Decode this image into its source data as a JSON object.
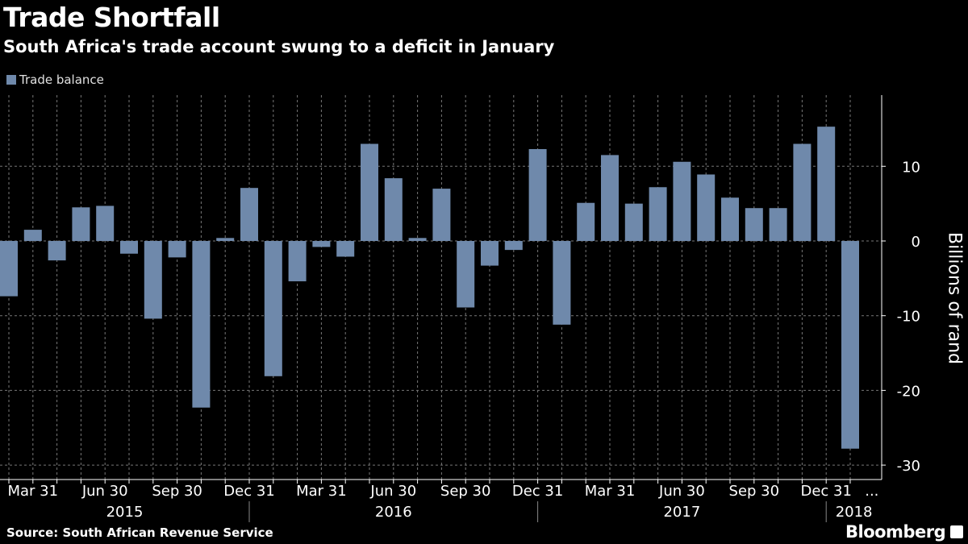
{
  "title": "Trade Shortfall",
  "subtitle": "South Africa's trade account swung to a deficit in January",
  "source": "Source: South African Revenue Service",
  "brand": "Bloomberg",
  "chart_data": {
    "type": "bar",
    "title": "Trade Shortfall",
    "subtitle": "South Africa's trade account swung to a deficit in January",
    "ylabel": "Billions of rand",
    "ylim": [
      -32,
      19
    ],
    "yticks": [
      10,
      0,
      -10,
      -20,
      -30
    ],
    "grid": true,
    "legend": "top-left",
    "y_axis_side": "right",
    "bar_color": "#6f89ab",
    "categories": [
      "Feb 2015",
      "Mar 2015",
      "Apr 2015",
      "May 2015",
      "Jun 2015",
      "Jul 2015",
      "Aug 2015",
      "Sep 2015",
      "Oct 2015",
      "Nov 2015",
      "Dec 2015",
      "Jan 2016",
      "Feb 2016",
      "Mar 2016",
      "Apr 2016",
      "May 2016",
      "Jun 2016",
      "Jul 2016",
      "Aug 2016",
      "Sep 2016",
      "Oct 2016",
      "Nov 2016",
      "Dec 2016",
      "Jan 2017",
      "Feb 2017",
      "Mar 2017",
      "Apr 2017",
      "May 2017",
      "Jun 2017",
      "Jul 2017",
      "Aug 2017",
      "Sep 2017",
      "Oct 2017",
      "Nov 2017",
      "Dec 2017",
      "Jan 2018"
    ],
    "series": [
      {
        "name": "Trade balance",
        "values": [
          -7.4,
          1.5,
          -2.6,
          4.5,
          4.7,
          -1.7,
          -10.4,
          -2.2,
          -22.3,
          0.4,
          7.1,
          -18.1,
          -5.4,
          -0.8,
          -2.1,
          13.0,
          8.4,
          0.4,
          7.0,
          -8.9,
          -3.3,
          -1.2,
          12.3,
          -11.2,
          5.1,
          11.5,
          5.0,
          7.2,
          10.6,
          8.9,
          5.8,
          4.4,
          4.4,
          13.0,
          15.3,
          -27.8
        ]
      }
    ],
    "xtick_labels": [
      {
        "index": 1,
        "label": "Mar 31"
      },
      {
        "index": 4,
        "label": "Jun 30"
      },
      {
        "index": 7,
        "label": "Sep 30"
      },
      {
        "index": 10,
        "label": "Dec 31"
      },
      {
        "index": 13,
        "label": "Mar 31"
      },
      {
        "index": 16,
        "label": "Jun 30"
      },
      {
        "index": 19,
        "label": "Sep 30"
      },
      {
        "index": 22,
        "label": "Dec 31"
      },
      {
        "index": 25,
        "label": "Mar 31"
      },
      {
        "index": 28,
        "label": "Jun 30"
      },
      {
        "index": 31,
        "label": "Sep 30"
      },
      {
        "index": 34,
        "label": "Dec 31"
      },
      {
        "index": 35.9,
        "label": "..."
      }
    ],
    "year_labels": [
      {
        "label": "2015",
        "from": 0,
        "to": 10.5
      },
      {
        "label": "2016",
        "from": 10.5,
        "to": 22.5
      },
      {
        "label": "2017",
        "from": 22.5,
        "to": 34.5
      },
      {
        "label": "2018",
        "from": 34.5,
        "to": 37
      }
    ]
  }
}
